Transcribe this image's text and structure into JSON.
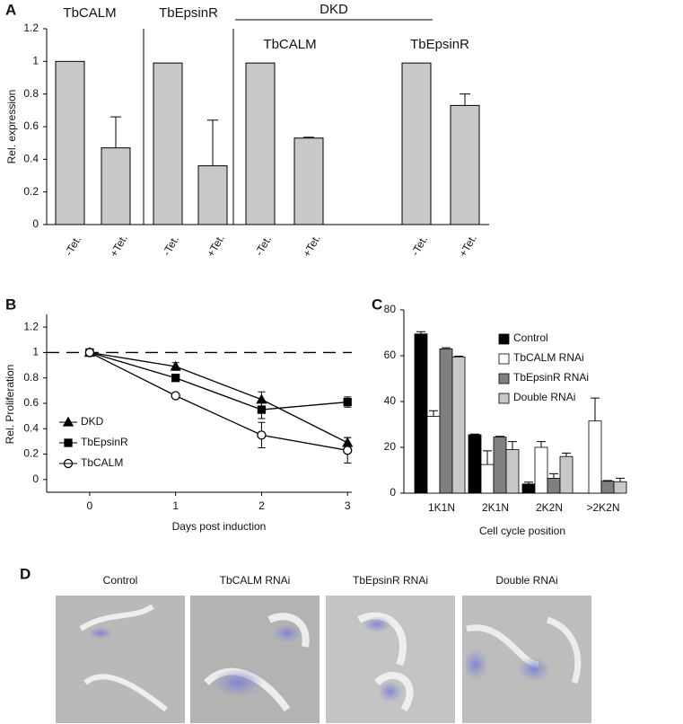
{
  "chart_data": [
    {
      "type": "grouped-panel-bar",
      "panel": "A",
      "ylabel": "Rel. expression",
      "ylim": [
        0,
        1.2
      ],
      "yticks": [
        0,
        0.2,
        0.4,
        0.6,
        0.8,
        1,
        1.2
      ],
      "color": "#c8c8c8",
      "group_header": "DKD",
      "groups": [
        {
          "title": "TbCALM",
          "categories": [
            "-Tet.",
            "+Tet."
          ],
          "values": [
            1,
            0.47
          ],
          "errors": [
            null,
            0.19
          ]
        },
        {
          "title": "TbEpsinR",
          "categories": [
            "-Tet.",
            "+Tet."
          ],
          "values": [
            0.99,
            0.36
          ],
          "errors": [
            null,
            0.28
          ]
        },
        {
          "title": "TbCALM",
          "categories": [
            "-Tet.",
            "+Tet."
          ],
          "values": [
            0.99,
            0.53
          ],
          "errors": [
            null,
            0.005
          ]
        },
        {
          "title": "TbEpsinR",
          "categories": [
            "-Tet.",
            "+Tet."
          ],
          "values": [
            0.99,
            0.73
          ],
          "errors": [
            null,
            0.07
          ]
        }
      ]
    },
    {
      "type": "line",
      "panel": "B",
      "xlabel": "Days post induction",
      "ylabel": "Rel. Proliferation",
      "xlim": [
        -0.5,
        3.05
      ],
      "xticks": [
        0,
        1,
        2,
        3
      ],
      "ylim": [
        -0.1,
        1.3
      ],
      "yticks": [
        0,
        0.2,
        0.4,
        0.6,
        0.8,
        1,
        1.2
      ],
      "reference_line": 1,
      "x": [
        0,
        1,
        2,
        3
      ],
      "series": [
        {
          "name": "DKD",
          "marker": "triangle",
          "color": "#000000",
          "values": [
            1,
            0.89,
            0.63,
            0.29
          ],
          "errors": [
            0,
            0.03,
            0.06,
            0.04
          ]
        },
        {
          "name": "TbEpsinR",
          "marker": "square",
          "color": "#000000",
          "values": [
            1,
            0.8,
            0.55,
            0.61
          ],
          "errors": [
            0,
            0.02,
            0.07,
            0.04
          ]
        },
        {
          "name": "TbCALM",
          "marker": "circle",
          "color": "#000000",
          "values": [
            1,
            0.66,
            0.35,
            0.23
          ],
          "errors": [
            0,
            0.01,
            0.1,
            0.1
          ]
        }
      ]
    },
    {
      "type": "bar",
      "panel": "C",
      "xlabel": "Cell cycle position",
      "ylim": [
        0,
        80
      ],
      "yticks": [
        0,
        20,
        40,
        60,
        80
      ],
      "categories": [
        "1K1N",
        "2K1N",
        "2K2N",
        ">2K2N"
      ],
      "series": [
        {
          "name": "Control",
          "color": "#000000",
          "values": [
            69.5,
            25.5,
            4,
            0
          ],
          "errors": [
            1,
            0.3,
            0.8,
            0
          ]
        },
        {
          "name": "TbCALM RNAi",
          "color": "#ffffff",
          "values": [
            33.5,
            12.5,
            20,
            31.5
          ],
          "errors": [
            2.5,
            6,
            2.5,
            10
          ]
        },
        {
          "name": "TbEpsinR RNAi",
          "color": "#808080",
          "values": [
            63,
            24.5,
            6.5,
            5.2
          ],
          "errors": [
            0.5,
            0.3,
            2,
            0.3
          ]
        },
        {
          "name": "Double RNAi",
          "color": "#c8c8c8",
          "values": [
            59.5,
            19,
            16,
            5
          ],
          "errors": [
            0.3,
            3.5,
            1.5,
            1.5
          ]
        }
      ]
    }
  ],
  "images": {
    "panel": "D",
    "titles": [
      "Control",
      "TbCALM RNAi",
      "TbEpsinR RNAi",
      "Double RNAi"
    ]
  }
}
